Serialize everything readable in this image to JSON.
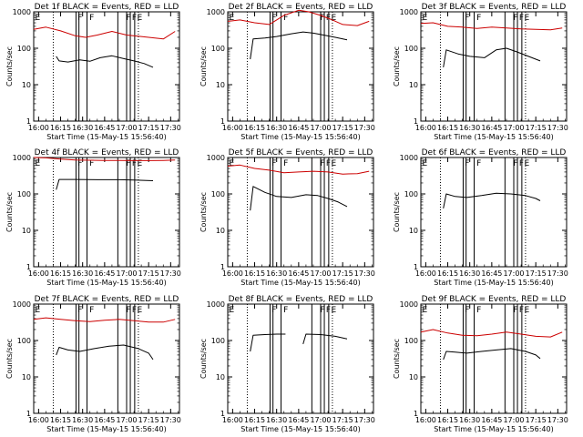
{
  "chart_data": [
    {
      "type": "line",
      "title": "Det 1f BLACK = Events, RED = LLD",
      "xlabel": "Start Time (15-May-15 15:56:40)",
      "ylabel": "Counts/sec",
      "xticks": [
        "16:00",
        "16:15",
        "16:30",
        "16:45",
        "17:00",
        "17:15",
        "17:30"
      ],
      "yticks": [
        "1",
        "10",
        "100",
        "1000"
      ],
      "x_range": [
        "15:56:40",
        "17:36:00"
      ],
      "ylim": [
        1,
        1000
      ],
      "y_scale": "log",
      "flag_labels": [
        "E",
        "F",
        "F",
        "F",
        "F",
        "E"
      ],
      "series": [
        {
          "color": "#cc0000",
          "x": [
            "15:56:40",
            "16:05:00",
            "16:15:00",
            "16:25:00",
            "16:32:00",
            "16:40:00",
            "16:50:00",
            "17:00:00",
            "17:10:00",
            "17:15:00",
            "17:25:00",
            "17:33:00"
          ],
          "values": [
            330,
            380,
            300,
            220,
            200,
            230,
            290,
            230,
            210,
            200,
            180,
            290
          ]
        },
        {
          "color": "#000000",
          "x": [
            "16:12:00",
            "16:14:00",
            "16:20:00",
            "16:28:00",
            "16:35:00",
            "16:42:00",
            "16:50:00",
            "16:58:00",
            "17:05:00",
            "17:12:00",
            "17:18:00"
          ],
          "values": [
            60,
            45,
            42,
            48,
            44,
            55,
            62,
            52,
            45,
            38,
            30
          ]
        }
      ]
    },
    {
      "type": "line",
      "title": "Det 2f BLACK = Events, RED = LLD",
      "xlabel": "Start Time (15-May-15 15:56:40)",
      "ylabel": "Counts/sec",
      "xticks": [
        "16:00",
        "16:15",
        "16:30",
        "16:45",
        "17:00",
        "17:15",
        "17:30"
      ],
      "yticks": [
        "1",
        "10",
        "100",
        "1000"
      ],
      "x_range": [
        "15:56:40",
        "17:36:00"
      ],
      "ylim": [
        1,
        1000
      ],
      "y_scale": "log",
      "flag_labels": [
        "E",
        "F",
        "F",
        "F",
        "F",
        "E"
      ],
      "series": [
        {
          "color": "#cc0000",
          "x": [
            "15:56:40",
            "16:05:00",
            "16:15:00",
            "16:25:00",
            "16:35:00",
            "16:45:00",
            "16:52:00",
            "17:00:00",
            "17:08:00",
            "17:15:00",
            "17:25:00",
            "17:33:00"
          ],
          "values": [
            550,
            600,
            500,
            450,
            800,
            1100,
            1000,
            800,
            600,
            450,
            420,
            550
          ]
        },
        {
          "color": "#000000",
          "x": [
            "16:12:00",
            "16:14:00",
            "16:22:00",
            "16:30:00",
            "16:40:00",
            "16:48:00",
            "16:55:00",
            "17:02:00",
            "17:10:00",
            "17:18:00"
          ],
          "values": [
            50,
            180,
            190,
            210,
            250,
            280,
            260,
            230,
            200,
            170
          ]
        }
      ]
    },
    {
      "type": "line",
      "title": "Det 3f BLACK = Events, RED = LLD",
      "xlabel": "Start Time (15-May-15 15:56:40)",
      "ylabel": "Counts/sec",
      "xticks": [
        "16:00",
        "16:15",
        "16:30",
        "16:45",
        "17:00",
        "17:15",
        "17:30"
      ],
      "yticks": [
        "1",
        "10",
        "100",
        "1000"
      ],
      "x_range": [
        "15:56:40",
        "17:36:00"
      ],
      "ylim": [
        1,
        1000
      ],
      "y_scale": "log",
      "flag_labels": [
        "E",
        "F",
        "F",
        "F",
        "F",
        "E"
      ],
      "series": [
        {
          "color": "#cc0000",
          "x": [
            "15:56:40",
            "16:05:00",
            "16:15:00",
            "16:25:00",
            "16:35:00",
            "16:45:00",
            "16:55:00",
            "17:05:00",
            "17:15:00",
            "17:25:00",
            "17:33:00"
          ],
          "values": [
            480,
            500,
            400,
            380,
            350,
            380,
            360,
            340,
            330,
            320,
            360
          ]
        },
        {
          "color": "#000000",
          "x": [
            "16:12:00",
            "16:14:00",
            "16:22:00",
            "16:30:00",
            "16:40:00",
            "16:48:00",
            "16:55:00",
            "17:02:00",
            "17:10:00",
            "17:18:00"
          ],
          "values": [
            30,
            90,
            70,
            60,
            55,
            90,
            100,
            80,
            60,
            45
          ]
        }
      ]
    },
    {
      "type": "line",
      "title": "Det 4f BLACK = Events, RED = LLD",
      "xlabel": "Start Time (15-May-15 15:56:40)",
      "ylabel": "Counts/sec",
      "xticks": [
        "16:00",
        "16:15",
        "16:30",
        "16:45",
        "17:00",
        "17:15",
        "17:30"
      ],
      "yticks": [
        "1",
        "10",
        "100",
        "1000"
      ],
      "x_range": [
        "15:56:40",
        "17:36:00"
      ],
      "ylim": [
        1,
        1000
      ],
      "y_scale": "log",
      "flag_labels": [
        "E",
        "F",
        "F",
        "F",
        "F",
        "E"
      ],
      "series": [
        {
          "color": "#cc0000",
          "x": [
            "15:56:40",
            "16:05:00",
            "16:15:00",
            "16:25:00",
            "16:35:00",
            "16:45:00",
            "16:55:00",
            "17:05:00",
            "17:15:00",
            "17:25:00",
            "17:33:00"
          ],
          "values": [
            1000,
            980,
            900,
            850,
            840,
            830,
            830,
            820,
            820,
            830,
            850
          ]
        },
        {
          "color": "#000000",
          "x": [
            "16:12:00",
            "16:14:00",
            "16:25:00",
            "16:40:00",
            "16:55:00",
            "17:05:00",
            "17:18:00"
          ],
          "values": [
            130,
            250,
            250,
            245,
            245,
            240,
            230
          ]
        }
      ]
    },
    {
      "type": "line",
      "title": "Det 5f BLACK = Events, RED = LLD",
      "xlabel": "Start Time (15-May-15 15:56:40)",
      "ylabel": "Counts/sec",
      "xticks": [
        "16:00",
        "16:15",
        "16:30",
        "16:45",
        "17:00",
        "17:15",
        "17:30"
      ],
      "yticks": [
        "1",
        "10",
        "100",
        "1000"
      ],
      "x_range": [
        "15:56:40",
        "17:36:00"
      ],
      "ylim": [
        1,
        1000
      ],
      "y_scale": "log",
      "flag_labels": [
        "E",
        "F",
        "F",
        "F",
        "F",
        "E"
      ],
      "series": [
        {
          "color": "#cc0000",
          "x": [
            "15:56:40",
            "16:05:00",
            "16:15:00",
            "16:25:00",
            "16:35:00",
            "16:45:00",
            "16:55:00",
            "17:05:00",
            "17:15:00",
            "17:25:00",
            "17:33:00"
          ],
          "values": [
            580,
            620,
            500,
            450,
            380,
            400,
            420,
            400,
            350,
            360,
            420
          ]
        },
        {
          "color": "#000000",
          "x": [
            "16:12:00",
            "16:14:00",
            "16:22:00",
            "16:30:00",
            "16:40:00",
            "16:50:00",
            "16:58:00",
            "17:05:00",
            "17:12:00",
            "17:18:00"
          ],
          "values": [
            35,
            160,
            110,
            85,
            80,
            95,
            90,
            75,
            60,
            45
          ]
        }
      ]
    },
    {
      "type": "line",
      "title": "Det 6f BLACK = Events, RED = LLD",
      "xlabel": "Start Time (15-May-15 15:56:40)",
      "ylabel": "Counts/sec",
      "xticks": [
        "16:00",
        "16:15",
        "16:30",
        "16:45",
        "17:00",
        "17:15",
        "17:30"
      ],
      "yticks": [
        "1",
        "10",
        "100",
        "1000"
      ],
      "x_range": [
        "15:56:40",
        "17:36:00"
      ],
      "ylim": [
        1,
        1000
      ],
      "y_scale": "log",
      "flag_labels": [
        "E",
        "F",
        "F",
        "F",
        "F",
        "E"
      ],
      "series": [
        {
          "color": "#000000",
          "x": [
            "16:12:00",
            "16:14:00",
            "16:20:00",
            "16:28:00",
            "16:38:00",
            "16:48:00",
            "16:58:00",
            "17:08:00",
            "17:15:00",
            "17:18:00"
          ],
          "values": [
            40,
            100,
            85,
            80,
            90,
            105,
            100,
            90,
            75,
            65
          ]
        }
      ]
    },
    {
      "type": "line",
      "title": "Det 7f BLACK = Events, RED = LLD",
      "xlabel": "Start Time (15-May-15 15:56:40)",
      "ylabel": "Counts/sec",
      "xticks": [
        "16:00",
        "16:15",
        "16:30",
        "16:45",
        "17:00",
        "17:15",
        "17:30"
      ],
      "yticks": [
        "1",
        "10",
        "100",
        "1000"
      ],
      "x_range": [
        "15:56:40",
        "17:36:00"
      ],
      "ylim": [
        1,
        1000
      ],
      "y_scale": "log",
      "flag_labels": [
        "E",
        "F",
        "F",
        "F",
        "F",
        "E"
      ],
      "series": [
        {
          "color": "#cc0000",
          "x": [
            "15:56:40",
            "16:05:00",
            "16:15:00",
            "16:25:00",
            "16:35:00",
            "16:45:00",
            "16:55:00",
            "17:05:00",
            "17:15:00",
            "17:25:00",
            "17:33:00"
          ],
          "values": [
            380,
            420,
            380,
            350,
            330,
            360,
            380,
            350,
            320,
            320,
            380
          ]
        },
        {
          "color": "#000000",
          "x": [
            "16:12:00",
            "16:14:00",
            "16:20:00",
            "16:28:00",
            "16:38:00",
            "16:48:00",
            "16:58:00",
            "17:08:00",
            "17:15:00",
            "17:18:00"
          ],
          "values": [
            40,
            65,
            55,
            50,
            60,
            70,
            75,
            60,
            45,
            30
          ]
        }
      ]
    },
    {
      "type": "line",
      "title": "Det 8f BLACK = Events, RED = LLD",
      "xlabel": "Start Time (15-May-15 15:56:40)",
      "ylabel": "Counts/sec",
      "xticks": [
        "16:00",
        "16:15",
        "16:30",
        "16:45",
        "17:00",
        "17:15",
        "17:30"
      ],
      "yticks": [
        "1",
        "10",
        "100",
        "1000"
      ],
      "x_range": [
        "15:56:40",
        "17:36:00"
      ],
      "ylim": [
        1,
        1000
      ],
      "y_scale": "log",
      "flag_labels": [
        "E",
        "F",
        "F",
        "F",
        "F",
        "E"
      ],
      "series": [
        {
          "color": "#000000",
          "x": [
            "16:12:00",
            "16:14:00",
            "16:22:00",
            "16:30:00",
            "16:36:00"
          ],
          "values": [
            50,
            140,
            145,
            150,
            150
          ]
        },
        {
          "color": "#000000",
          "x": [
            "16:48:00",
            "16:50:00",
            "17:00:00",
            "17:10:00",
            "17:18:00"
          ],
          "values": [
            80,
            150,
            145,
            130,
            110
          ]
        }
      ]
    },
    {
      "type": "line",
      "title": "Det 9f BLACK = Events, RED = LLD",
      "xlabel": "Start Time (15-May-15 15:56:40)",
      "ylabel": "Counts/sec",
      "xticks": [
        "16:00",
        "16:15",
        "16:30",
        "16:45",
        "17:00",
        "17:15",
        "17:30"
      ],
      "yticks": [
        "1",
        "10",
        "100",
        "1000"
      ],
      "x_range": [
        "15:56:40",
        "17:36:00"
      ],
      "ylim": [
        1,
        1000
      ],
      "y_scale": "log",
      "flag_labels": [
        "E",
        "F",
        "F",
        "F",
        "F",
        "E"
      ],
      "series": [
        {
          "color": "#cc0000",
          "x": [
            "15:56:40",
            "16:05:00",
            "16:15:00",
            "16:25:00",
            "16:35:00",
            "16:45:00",
            "16:55:00",
            "17:05:00",
            "17:15:00",
            "17:25:00",
            "17:33:00"
          ],
          "values": [
            170,
            200,
            160,
            140,
            135,
            150,
            170,
            150,
            130,
            125,
            170
          ]
        },
        {
          "color": "#000000",
          "x": [
            "16:12:00",
            "16:14:00",
            "16:20:00",
            "16:28:00",
            "16:38:00",
            "16:48:00",
            "16:58:00",
            "17:08:00",
            "17:15:00",
            "17:18:00"
          ],
          "values": [
            30,
            50,
            48,
            45,
            50,
            55,
            60,
            50,
            40,
            32
          ]
        }
      ]
    }
  ]
}
